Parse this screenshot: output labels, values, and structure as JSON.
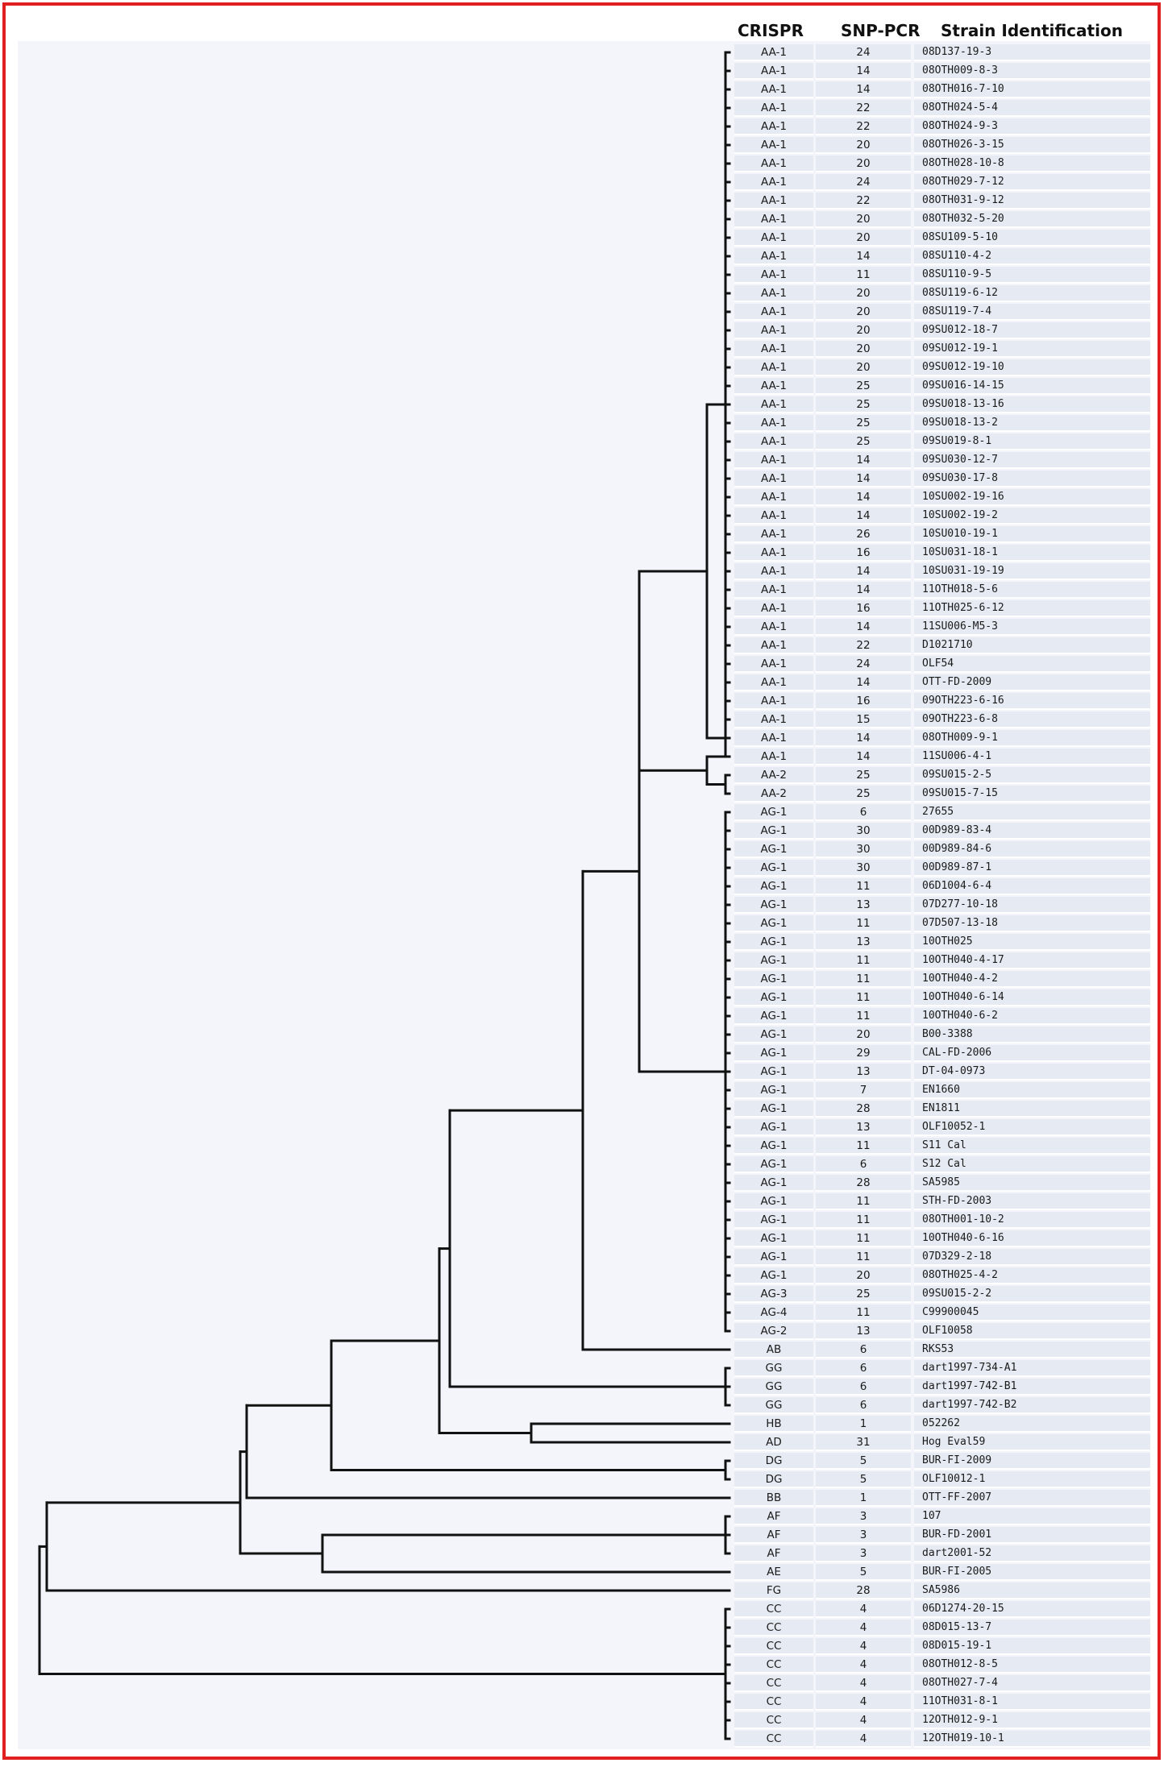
{
  "headers": {
    "crispr": "CRISPR",
    "snp_pcr": "SNP-PCR",
    "strain": "Strain Identification"
  },
  "rows": [
    {
      "crispr": "AA-1",
      "snp": "24",
      "strain": "08D137-19-3"
    },
    {
      "crispr": "AA-1",
      "snp": "14",
      "strain": "08OTH009-8-3"
    },
    {
      "crispr": "AA-1",
      "snp": "14",
      "strain": "08OTH016-7-10"
    },
    {
      "crispr": "AA-1",
      "snp": "22",
      "strain": "08OTH024-5-4"
    },
    {
      "crispr": "AA-1",
      "snp": "22",
      "strain": "08OTH024-9-3"
    },
    {
      "crispr": "AA-1",
      "snp": "20",
      "strain": "08OTH026-3-15"
    },
    {
      "crispr": "AA-1",
      "snp": "20",
      "strain": "08OTH028-10-8"
    },
    {
      "crispr": "AA-1",
      "snp": "24",
      "strain": "08OTH029-7-12"
    },
    {
      "crispr": "AA-1",
      "snp": "22",
      "strain": "08OTH031-9-12"
    },
    {
      "crispr": "AA-1",
      "snp": "20",
      "strain": "08OTH032-5-20"
    },
    {
      "crispr": "AA-1",
      "snp": "20",
      "strain": "08SU109-5-10"
    },
    {
      "crispr": "AA-1",
      "snp": "14",
      "strain": "08SU110-4-2"
    },
    {
      "crispr": "AA-1",
      "snp": "11",
      "strain": "08SU110-9-5"
    },
    {
      "crispr": "AA-1",
      "snp": "20",
      "strain": "08SU119-6-12"
    },
    {
      "crispr": "AA-1",
      "snp": "20",
      "strain": "08SU119-7-4"
    },
    {
      "crispr": "AA-1",
      "snp": "20",
      "strain": "09SU012-18-7"
    },
    {
      "crispr": "AA-1",
      "snp": "20",
      "strain": "09SU012-19-1"
    },
    {
      "crispr": "AA-1",
      "snp": "20",
      "strain": "09SU012-19-10"
    },
    {
      "crispr": "AA-1",
      "snp": "25",
      "strain": "09SU016-14-15"
    },
    {
      "crispr": "AA-1",
      "snp": "25",
      "strain": "09SU018-13-16"
    },
    {
      "crispr": "AA-1",
      "snp": "25",
      "strain": "09SU018-13-2"
    },
    {
      "crispr": "AA-1",
      "snp": "25",
      "strain": "09SU019-8-1"
    },
    {
      "crispr": "AA-1",
      "snp": "14",
      "strain": "09SU030-12-7"
    },
    {
      "crispr": "AA-1",
      "snp": "14",
      "strain": "09SU030-17-8"
    },
    {
      "crispr": "AA-1",
      "snp": "14",
      "strain": "10SU002-19-16"
    },
    {
      "crispr": "AA-1",
      "snp": "14",
      "strain": "10SU002-19-2"
    },
    {
      "crispr": "AA-1",
      "snp": "26",
      "strain": "10SU010-19-1"
    },
    {
      "crispr": "AA-1",
      "snp": "16",
      "strain": "10SU031-18-1"
    },
    {
      "crispr": "AA-1",
      "snp": "14",
      "strain": "10SU031-19-19"
    },
    {
      "crispr": "AA-1",
      "snp": "14",
      "strain": "11OTH018-5-6"
    },
    {
      "crispr": "AA-1",
      "snp": "16",
      "strain": "11OTH025-6-12"
    },
    {
      "crispr": "AA-1",
      "snp": "14",
      "strain": "11SU006-M5-3"
    },
    {
      "crispr": "AA-1",
      "snp": "22",
      "strain": "D1021710"
    },
    {
      "crispr": "AA-1",
      "snp": "24",
      "strain": "OLF54"
    },
    {
      "crispr": "AA-1",
      "snp": "14",
      "strain": "OTT-FD-2009"
    },
    {
      "crispr": "AA-1",
      "snp": "16",
      "strain": "09OTH223-6-16"
    },
    {
      "crispr": "AA-1",
      "snp": "15",
      "strain": "09OTH223-6-8"
    },
    {
      "crispr": "AA-1",
      "snp": "14",
      "strain": "08OTH009-9-1"
    },
    {
      "crispr": "AA-1",
      "snp": "14",
      "strain": "11SU006-4-1"
    },
    {
      "crispr": "AA-2",
      "snp": "25",
      "strain": "09SU015-2-5"
    },
    {
      "crispr": "AA-2",
      "snp": "25",
      "strain": "09SU015-7-15"
    },
    {
      "crispr": "AG-1",
      "snp": "6",
      "strain": "27655"
    },
    {
      "crispr": "AG-1",
      "snp": "30",
      "strain": "00D989-83-4"
    },
    {
      "crispr": "AG-1",
      "snp": "30",
      "strain": "00D989-84-6"
    },
    {
      "crispr": "AG-1",
      "snp": "30",
      "strain": "00D989-87-1"
    },
    {
      "crispr": "AG-1",
      "snp": "11",
      "strain": "06D1004-6-4"
    },
    {
      "crispr": "AG-1",
      "snp": "13",
      "strain": "07D277-10-18"
    },
    {
      "crispr": "AG-1",
      "snp": "11",
      "strain": "07D507-13-18"
    },
    {
      "crispr": "AG-1",
      "snp": "13",
      "strain": "10OTH025"
    },
    {
      "crispr": "AG-1",
      "snp": "11",
      "strain": "10OTH040-4-17"
    },
    {
      "crispr": "AG-1",
      "snp": "11",
      "strain": "10OTH040-4-2"
    },
    {
      "crispr": "AG-1",
      "snp": "11",
      "strain": "10OTH040-6-14"
    },
    {
      "crispr": "AG-1",
      "snp": "11",
      "strain": "10OTH040-6-2"
    },
    {
      "crispr": "AG-1",
      "snp": "20",
      "strain": "B00-3388"
    },
    {
      "crispr": "AG-1",
      "snp": "29",
      "strain": "CAL-FD-2006"
    },
    {
      "crispr": "AG-1",
      "snp": "13",
      "strain": "DT-04-0973"
    },
    {
      "crispr": "AG-1",
      "snp": "7",
      "strain": "EN1660"
    },
    {
      "crispr": "AG-1",
      "snp": "28",
      "strain": "EN1811"
    },
    {
      "crispr": "AG-1",
      "snp": "13",
      "strain": "OLF10052-1"
    },
    {
      "crispr": "AG-1",
      "snp": "11",
      "strain": "S11 Cal"
    },
    {
      "crispr": "AG-1",
      "snp": "6",
      "strain": "S12 Cal"
    },
    {
      "crispr": "AG-1",
      "snp": "28",
      "strain": "SA5985"
    },
    {
      "crispr": "AG-1",
      "snp": "11",
      "strain": "STH-FD-2003"
    },
    {
      "crispr": "AG-1",
      "snp": "11",
      "strain": "08OTH001-10-2"
    },
    {
      "crispr": "AG-1",
      "snp": "11",
      "strain": "10OTH040-6-16"
    },
    {
      "crispr": "AG-1",
      "snp": "11",
      "strain": "07D329-2-18"
    },
    {
      "crispr": "AG-1",
      "snp": "20",
      "strain": "08OTH025-4-2"
    },
    {
      "crispr": "AG-3",
      "snp": "25",
      "strain": "09SU015-2-2"
    },
    {
      "crispr": "AG-4",
      "snp": "11",
      "strain": "C99900045"
    },
    {
      "crispr": "AG-2",
      "snp": "13",
      "strain": "OLF10058"
    },
    {
      "crispr": "AB",
      "snp": "6",
      "strain": "RKS53"
    },
    {
      "crispr": "GG",
      "snp": "6",
      "strain": "dart1997-734-A1"
    },
    {
      "crispr": "GG",
      "snp": "6",
      "strain": "dart1997-742-B1"
    },
    {
      "crispr": "GG",
      "snp": "6",
      "strain": "dart1997-742-B2"
    },
    {
      "crispr": "HB",
      "snp": "1",
      "strain": "052262"
    },
    {
      "crispr": "AD",
      "snp": "31",
      "strain": "Hog Eval59"
    },
    {
      "crispr": "DG",
      "snp": "5",
      "strain": "BUR-FI-2009"
    },
    {
      "crispr": "DG",
      "snp": "5",
      "strain": "OLF10012-1"
    },
    {
      "crispr": "BB",
      "snp": "1",
      "strain": "OTT-FF-2007"
    },
    {
      "crispr": "AF",
      "snp": "3",
      "strain": "107"
    },
    {
      "crispr": "AF",
      "snp": "3",
      "strain": "BUR-FD-2001"
    },
    {
      "crispr": "AF",
      "snp": "3",
      "strain": "dart2001-52"
    },
    {
      "crispr": "AE",
      "snp": "5",
      "strain": "BUR-FI-2005"
    },
    {
      "crispr": "FG",
      "snp": "28",
      "strain": "SA5986"
    },
    {
      "crispr": "CC",
      "snp": "4",
      "strain": "06D1274-20-15"
    },
    {
      "crispr": "CC",
      "snp": "4",
      "strain": "08D015-13-7"
    },
    {
      "crispr": "CC",
      "snp": "4",
      "strain": "08D015-19-1"
    },
    {
      "crispr": "CC",
      "snp": "4",
      "strain": "08OTH012-8-5"
    },
    {
      "crispr": "CC",
      "snp": "4",
      "strain": "08OTH027-7-4"
    },
    {
      "crispr": "CC",
      "snp": "4",
      "strain": "11OTH031-8-1"
    },
    {
      "crispr": "CC",
      "snp": "4",
      "strain": "12OTH012-9-1"
    },
    {
      "crispr": "CC",
      "snp": "4",
      "strain": "12OTH019-10-1"
    }
  ]
}
